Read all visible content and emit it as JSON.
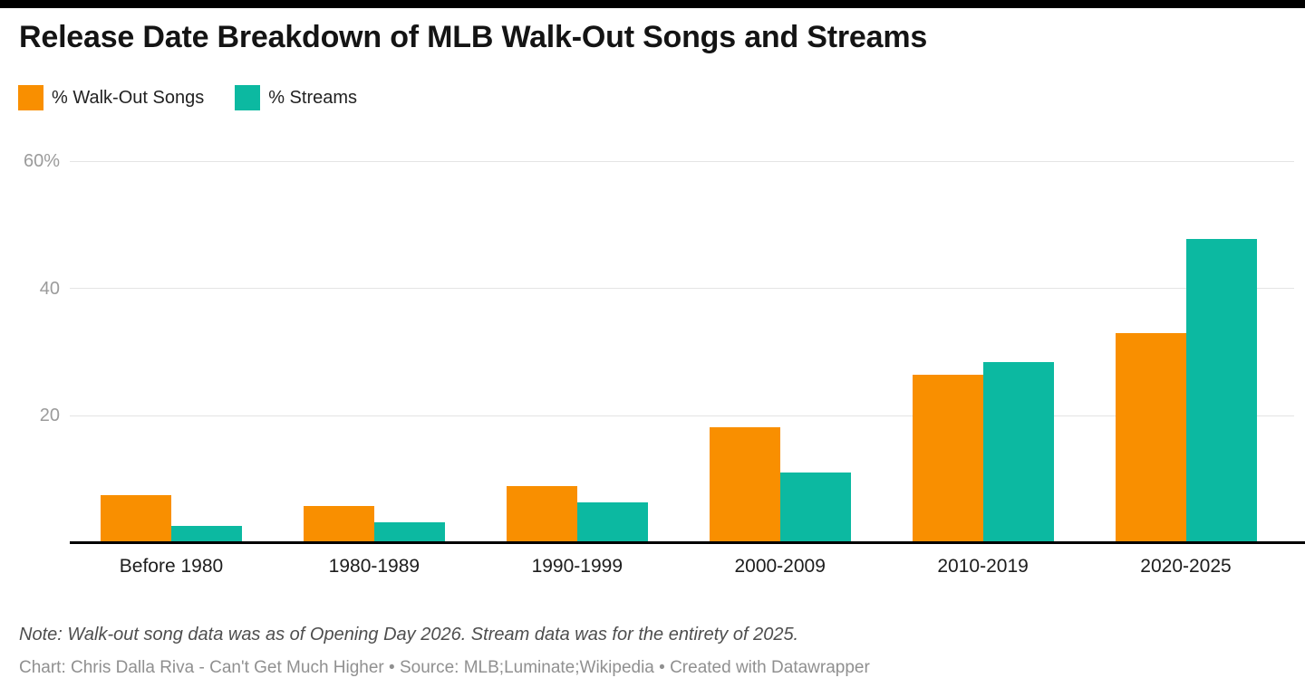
{
  "header": {
    "title": "Release Date Breakdown of MLB Walk-Out Songs and Streams"
  },
  "legend": {
    "items": [
      {
        "label": "% Walk-Out Songs",
        "color": "#F98F00"
      },
      {
        "label": "% Streams",
        "color": "#0CB9A1"
      }
    ]
  },
  "chart_data": {
    "type": "bar",
    "title": "Release Date Breakdown of MLB Walk-Out Songs and Streams",
    "categories": [
      "Before 1980",
      "1980-1989",
      "1990-1999",
      "2000-2009",
      "2010-2019",
      "2020-2025"
    ],
    "series": [
      {
        "name": "% Walk-Out Songs",
        "color": "#F98F00",
        "values": [
          7.5,
          5.8,
          9.0,
          18.2,
          26.5,
          33.0
        ]
      },
      {
        "name": "% Streams",
        "color": "#0CB9A1",
        "values": [
          2.7,
          3.3,
          6.4,
          11.1,
          28.4,
          47.8
        ]
      }
    ],
    "xlabel": "",
    "ylabel": "",
    "ylim": [
      0,
      60
    ],
    "yticks": [
      {
        "value": 20,
        "label": "20"
      },
      {
        "value": 40,
        "label": "40"
      },
      {
        "value": 60,
        "label": "60%"
      }
    ],
    "grid": true,
    "legend_position": "top-left"
  },
  "footer": {
    "note": "Note: Walk-out song data was as of Opening Day 2026. Stream data was for the entirety of 2025.",
    "byline": "Chart: Chris Dalla Riva - Can't Get Much Higher • Source: MLB;Luminate;Wikipedia • Created with Datawrapper"
  },
  "colors": {
    "top_rule": "#000000",
    "axis_line": "#000000",
    "gridline": "#e4e4e4",
    "tick_text": "#9b9b9b",
    "label_text": "#1d1d1d",
    "background": "#ffffff"
  }
}
